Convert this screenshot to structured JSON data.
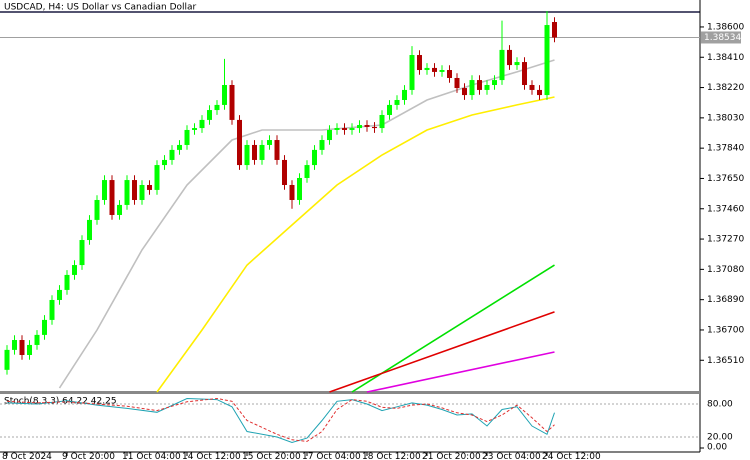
{
  "chart_data": {
    "type": "candlestick",
    "title": "USDCAD, H4: US Dollar vs Canadian Dollar",
    "up_color": "#00ff00",
    "down_color": "#b00000",
    "open": [
      1.3645,
      1.36575,
      1.36637,
      1.36543,
      1.36606,
      1.36669,
      1.36763,
      1.36888,
      1.36951,
      1.37045,
      1.37107,
      1.37264,
      1.3739,
      1.37515,
      1.3764,
      1.37421,
      1.37484,
      1.3764,
      1.37515,
      1.37609,
      1.37578,
      1.37734,
      1.37766,
      1.37829,
      1.3786,
      1.37954,
      1.37966,
      1.38017,
      1.38079,
      1.38111,
      1.38236,
      1.38017,
      1.37734,
      1.3786,
      1.37766,
      1.3786,
      1.37891,
      1.37766,
      1.37609,
      1.37515,
      1.37653,
      1.37734,
      1.37829,
      1.37891,
      1.37954,
      1.37966,
      1.37954,
      1.37966,
      1.37985,
      1.37973,
      1.37966,
      1.38048,
      1.38111,
      1.38142,
      1.38205,
      1.38424,
      1.3833,
      1.38343,
      1.38318,
      1.3833,
      1.3828,
      1.38217,
      1.38173,
      1.38267,
      1.38205,
      1.38236,
      1.38267,
      1.38456,
      1.38361,
      1.3838,
      1.38236,
      1.38205,
      1.38173,
      1.38631
    ],
    "high": [
      1.36605,
      1.36667,
      1.36667,
      1.36636,
      1.36699,
      1.36793,
      1.36918,
      1.36981,
      1.37075,
      1.37137,
      1.37294,
      1.3742,
      1.37545,
      1.3767,
      1.3767,
      1.37514,
      1.3767,
      1.3767,
      1.37639,
      1.37639,
      1.37764,
      1.37796,
      1.37859,
      1.3789,
      1.37984,
      1.37996,
      1.38047,
      1.38109,
      1.38141,
      1.384,
      1.38266,
      1.38047,
      1.3789,
      1.3789,
      1.3789,
      1.37921,
      1.37921,
      1.37796,
      1.37639,
      1.37683,
      1.37764,
      1.37859,
      1.37921,
      1.37984,
      1.37996,
      1.37996,
      1.37996,
      1.38015,
      1.38015,
      1.38003,
      1.38078,
      1.38141,
      1.38172,
      1.38235,
      1.3848,
      1.38454,
      1.38373,
      1.38373,
      1.3836,
      1.3836,
      1.3831,
      1.38247,
      1.38297,
      1.38297,
      1.38266,
      1.38297,
      1.3864,
      1.38486,
      1.3841,
      1.3841,
      1.38266,
      1.38235,
      1.387,
      1.38661
    ],
    "low": [
      1.3642,
      1.36545,
      1.36513,
      1.36513,
      1.36576,
      1.36639,
      1.36733,
      1.36858,
      1.36921,
      1.37015,
      1.37077,
      1.37234,
      1.3736,
      1.37485,
      1.37391,
      1.37391,
      1.37454,
      1.37485,
      1.37485,
      1.37548,
      1.37548,
      1.37704,
      1.37736,
      1.37799,
      1.3783,
      1.37924,
      1.37936,
      1.37987,
      1.38049,
      1.38081,
      1.37987,
      1.37704,
      1.37704,
      1.37736,
      1.37736,
      1.3783,
      1.37736,
      1.37579,
      1.3746,
      1.37485,
      1.37623,
      1.37704,
      1.37799,
      1.37861,
      1.37924,
      1.37924,
      1.37924,
      1.37936,
      1.37943,
      1.37936,
      1.37936,
      1.38018,
      1.38081,
      1.38112,
      1.38175,
      1.383,
      1.383,
      1.38288,
      1.38288,
      1.3825,
      1.38187,
      1.38143,
      1.38143,
      1.38175,
      1.38175,
      1.38206,
      1.38237,
      1.38331,
      1.38331,
      1.38206,
      1.38175,
      1.38143,
      1.38143,
      1.38504
    ],
    "close": [
      1.36575,
      1.36637,
      1.36543,
      1.36606,
      1.36669,
      1.36763,
      1.36888,
      1.36951,
      1.37045,
      1.37107,
      1.37264,
      1.3739,
      1.37515,
      1.3764,
      1.37421,
      1.37484,
      1.3764,
      1.37515,
      1.37609,
      1.37578,
      1.37734,
      1.37766,
      1.37829,
      1.3786,
      1.37954,
      1.37966,
      1.38017,
      1.38079,
      1.38111,
      1.38236,
      1.38017,
      1.37734,
      1.3786,
      1.37766,
      1.3786,
      1.37891,
      1.37766,
      1.37609,
      1.37515,
      1.37653,
      1.37734,
      1.37829,
      1.37891,
      1.37954,
      1.37966,
      1.37954,
      1.37966,
      1.37985,
      1.37973,
      1.37966,
      1.38048,
      1.38111,
      1.38142,
      1.38205,
      1.38424,
      1.3833,
      1.38343,
      1.38318,
      1.3833,
      1.3828,
      1.38217,
      1.38173,
      1.38267,
      1.38205,
      1.38236,
      1.38267,
      1.38456,
      1.38361,
      1.3838,
      1.38236,
      1.38205,
      1.38173,
      1.38612,
      1.38534
    ],
    "ylim": [
      1.36311,
      1.38769
    ],
    "yticks": [
      {
        "value": 1.386,
        "label": "1.38600"
      },
      {
        "value": 1.3841,
        "label": "1.38410"
      },
      {
        "value": 1.3822,
        "label": "1.38220"
      },
      {
        "value": 1.3803,
        "label": "1.38030"
      },
      {
        "value": 1.3784,
        "label": "1.37840"
      },
      {
        "value": 1.3765,
        "label": "1.37650"
      },
      {
        "value": 1.3746,
        "label": "1.37460"
      },
      {
        "value": 1.3727,
        "label": "1.37270"
      },
      {
        "value": 1.3708,
        "label": "1.37080"
      },
      {
        "value": 1.3689,
        "label": "1.36890"
      },
      {
        "value": 1.367,
        "label": "1.36700"
      },
      {
        "value": 1.3651,
        "label": "1.36510"
      }
    ],
    "current_price": {
      "value": 1.38534,
      "label": "1.38534"
    },
    "xticks": [
      {
        "value": 0,
        "label": "8 Oct 2024"
      },
      {
        "value": 8,
        "label": "9 Oct 20:00"
      },
      {
        "value": 16,
        "label": "11 Oct 04:00"
      },
      {
        "value": 24,
        "label": "14 Oct 12:00"
      },
      {
        "value": 32,
        "label": "15 Oct 20:00"
      },
      {
        "value": 40,
        "label": "17 Oct 04:00"
      },
      {
        "value": 48,
        "label": "18 Oct 12:00"
      },
      {
        "value": 56,
        "label": "21 Oct 20:00"
      },
      {
        "value": 64,
        "label": "23 Oct 04:00"
      },
      {
        "value": 72,
        "label": "24 Oct 12:00"
      }
    ],
    "overlays": [
      {
        "color": "#c0c0c0",
        "x": [
          7,
          12,
          18,
          24,
          30,
          34,
          42,
          50,
          56,
          62,
          68,
          73
        ],
        "values": [
          1.36336,
          1.367,
          1.37202,
          1.37609,
          1.37891,
          1.37954,
          1.37954,
          1.37985,
          1.38142,
          1.38236,
          1.38318,
          1.38393
        ]
      },
      {
        "color": "#ffee00",
        "x": [
          20,
          26,
          32,
          38,
          44,
          50,
          56,
          62,
          68,
          73
        ],
        "values": [
          1.36311,
          1.367,
          1.37107,
          1.37358,
          1.37609,
          1.37797,
          1.37954,
          1.38048,
          1.38111,
          1.38161
        ]
      },
      {
        "color": "#00e000",
        "x": [
          46,
          73
        ],
        "values": [
          1.36311,
          1.37107
        ]
      },
      {
        "color": "#e00000",
        "x": [
          43,
          73
        ],
        "values": [
          1.36311,
          1.36813
        ]
      },
      {
        "color": "#e000e0",
        "x": [
          48,
          73
        ],
        "values": [
          1.36311,
          1.36562
        ]
      }
    ],
    "indicator": {
      "label": "Stoch(8,3,3) 64.22 42.25",
      "ylim": [
        0,
        100
      ],
      "yticks": [
        {
          "value": 80,
          "label": "80.00"
        },
        {
          "value": 20,
          "label": "20.00"
        },
        {
          "value": 0,
          "label": "0.00"
        }
      ],
      "series": [
        {
          "color": "#1fa3b3",
          "style": "solid",
          "x": [
            0,
            4,
            8,
            12,
            16,
            20,
            24,
            28,
            30,
            32,
            36,
            38,
            40,
            42,
            44,
            46,
            48,
            50,
            52,
            54,
            56,
            58,
            60,
            62,
            64,
            66,
            68,
            70,
            72,
            73
          ],
          "values": [
            82,
            80,
            86,
            78,
            72,
            65,
            90,
            88,
            75,
            30,
            20,
            10,
            18,
            50,
            85,
            88,
            80,
            68,
            75,
            82,
            78,
            70,
            60,
            62,
            40,
            70,
            75,
            40,
            25,
            64.22
          ]
        },
        {
          "color": "#e03030",
          "style": "dashed",
          "x": [
            0,
            4,
            8,
            12,
            16,
            20,
            24,
            28,
            30,
            32,
            36,
            38,
            40,
            42,
            44,
            46,
            48,
            50,
            52,
            54,
            56,
            58,
            60,
            62,
            64,
            66,
            68,
            70,
            72,
            73
          ],
          "values": [
            85,
            82,
            84,
            80,
            76,
            68,
            84,
            90,
            85,
            50,
            25,
            15,
            12,
            30,
            70,
            88,
            85,
            74,
            72,
            78,
            80,
            73,
            64,
            60,
            48,
            60,
            78,
            55,
            30,
            42.25
          ]
        }
      ]
    }
  }
}
